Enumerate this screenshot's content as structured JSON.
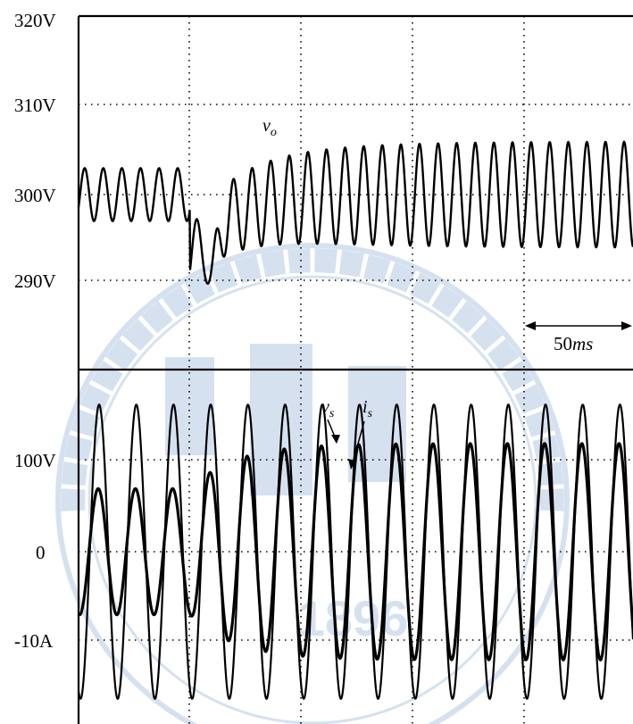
{
  "chart_data": [
    {
      "type": "line",
      "panel": "top",
      "ytick_labels": [
        "320V",
        "310V",
        "300V",
        "290V"
      ],
      "ylim": [
        280,
        320
      ],
      "grid": true,
      "series": [
        {
          "name": "v_o",
          "label_base": "v",
          "label_sub": "o",
          "segments": [
            {
              "t_start": 0,
              "t_end": 50,
              "offset_V": 300,
              "amplitude_V": 3,
              "freq_Hz": 120
            },
            {
              "t_start": 50,
              "t_end": 250,
              "note": "transient after step: mean dips to ~293 V (min ~286 V) and settles near 300 V",
              "offset_V": 300,
              "amplitude_V": 6,
              "freq_Hz": 120
            }
          ]
        }
      ],
      "annotations": [
        {
          "text": "50ms",
          "text_plain": "50",
          "text_italic": "ms",
          "type": "span-arrow",
          "span_ms": 50
        }
      ]
    },
    {
      "type": "line",
      "panel": "bottom",
      "ytick_labels": [
        "100V",
        "0",
        "-10A"
      ],
      "grid": true,
      "series": [
        {
          "name": "v_s",
          "label_base": "v",
          "label_sub": "s",
          "freq_Hz": 60,
          "amplitude_V": 160,
          "note": "source voltage, constant amplitude"
        },
        {
          "name": "i_s",
          "label_base": "i",
          "label_sub": "s",
          "freq_Hz": 60,
          "amplitude_before_A": 7,
          "amplitude_after_A": 12,
          "note": "source current, amplitude increases after step"
        }
      ]
    }
  ],
  "watermark": {
    "text": "1896",
    "description": "university seal watermark"
  }
}
